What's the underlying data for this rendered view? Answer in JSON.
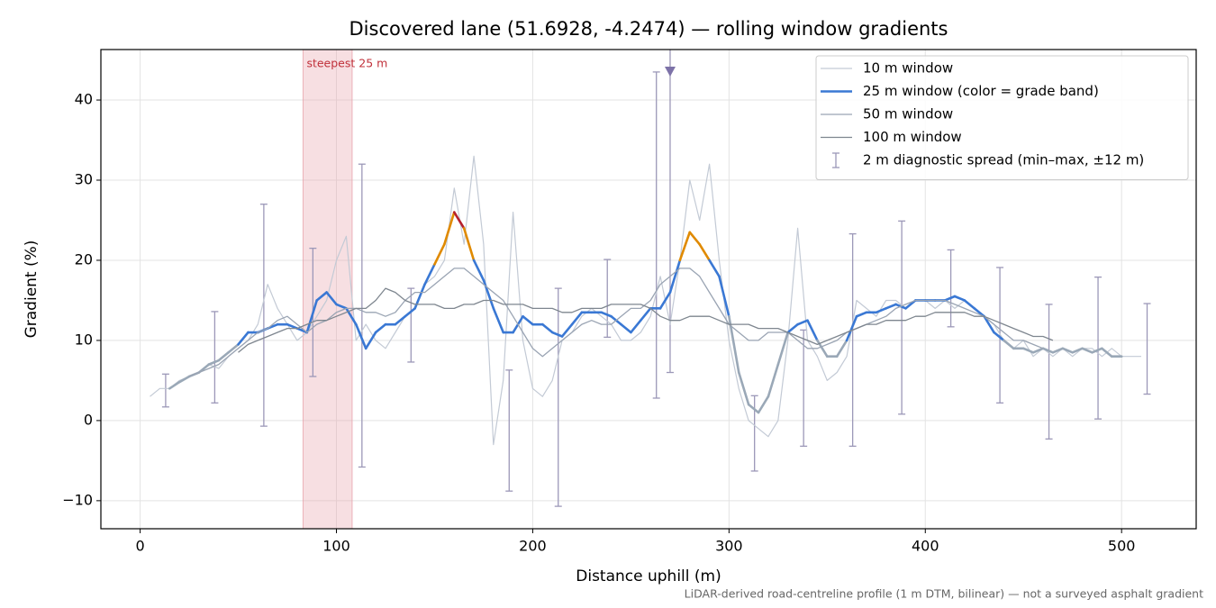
{
  "chart_data": {
    "type": "line",
    "title": "Discovered lane (51.6928, -4.2474) — rolling window gradients",
    "xlabel": "Distance uphill (m)",
    "ylabel": "Gradient (%)",
    "footnote": "LiDAR-derived road-centreline profile (1 m DTM, bilinear) — not a surveyed asphalt gradient",
    "xlim": [
      -20,
      538
    ],
    "ylim": [
      -13.5,
      46.3
    ],
    "xticks": [
      0,
      100,
      200,
      300,
      400,
      500
    ],
    "yticks": [
      {
        "value": -10,
        "label": "−10"
      },
      0,
      10,
      20,
      30,
      40
    ],
    "grid": true,
    "legend": "upper right",
    "highlight": {
      "label": "steepest 25 m",
      "x0": 83,
      "x1": 108,
      "color": "#e7a3ab"
    },
    "x": [
      5,
      10,
      15,
      20,
      25,
      30,
      35,
      40,
      45,
      50,
      55,
      60,
      65,
      70,
      75,
      80,
      85,
      90,
      95,
      100,
      105,
      110,
      115,
      120,
      125,
      130,
      135,
      140,
      145,
      150,
      155,
      160,
      165,
      170,
      175,
      180,
      185,
      190,
      195,
      200,
      205,
      210,
      215,
      220,
      225,
      230,
      235,
      240,
      245,
      250,
      255,
      260,
      265,
      270,
      275,
      280,
      285,
      290,
      295,
      300,
      305,
      310,
      315,
      320,
      325,
      330,
      335,
      340,
      345,
      350,
      355,
      360,
      365,
      370,
      375,
      380,
      385,
      390,
      395,
      400,
      405,
      410,
      415,
      420,
      425,
      430,
      435,
      440,
      445,
      450,
      455,
      460,
      465,
      470,
      475,
      480,
      485,
      490,
      495,
      500,
      505,
      510
    ],
    "series": [
      {
        "name": "10 m window",
        "color": "#c3cad5",
        "width": 1.2,
        "values": [
          3,
          4,
          4,
          5,
          5.5,
          6,
          7,
          6.5,
          8,
          9,
          10,
          12,
          17,
          14,
          12,
          10,
          11,
          13,
          15,
          20,
          23,
          10,
          12,
          10,
          9,
          11,
          13,
          14,
          17,
          18,
          20,
          29,
          22,
          33,
          22,
          -3,
          5,
          26,
          10,
          4,
          3,
          5,
          10,
          11,
          13,
          14,
          13,
          12,
          10,
          10,
          11,
          13,
          18,
          12,
          20,
          30,
          25,
          32,
          20,
          10,
          4,
          0,
          -1,
          -2,
          0,
          10,
          24,
          10,
          8,
          5,
          6,
          8,
          15,
          14,
          13,
          15,
          15,
          14,
          15,
          15,
          14,
          15,
          14,
          15,
          14,
          13,
          12,
          10,
          9,
          10,
          8,
          9,
          8,
          9,
          8,
          9,
          9,
          8,
          9,
          8,
          8,
          8
        ]
      },
      {
        "name": "25 m window (color = grade band)",
        "color": "#3a78d4",
        "width": 2.6,
        "grade_bands": [
          {
            "below": 10,
            "color": "#9aa8b7"
          },
          {
            "below": 20,
            "color": "#3a78d4"
          },
          {
            "below": 25,
            "color": "#e08a00"
          },
          {
            "color": "#b5202e"
          }
        ],
        "values": [
          null,
          null,
          4,
          4.8,
          5.5,
          6,
          7,
          7.5,
          8.5,
          9.5,
          11,
          11,
          11.5,
          12,
          12,
          11.5,
          11,
          15,
          16,
          14.5,
          14,
          12,
          9,
          11,
          12,
          12,
          13,
          14,
          17,
          19.5,
          22,
          26,
          24,
          20,
          17.5,
          14,
          11,
          11,
          13,
          12,
          12,
          11,
          10.5,
          12,
          13.5,
          13.5,
          13.5,
          13,
          12,
          11,
          12.5,
          14,
          14,
          16,
          20,
          23.5,
          22,
          20,
          18,
          13,
          6,
          2,
          1,
          3,
          7,
          11,
          12,
          12.5,
          10,
          8,
          8,
          10,
          13,
          13.5,
          13.5,
          14,
          14.5,
          14,
          15,
          15,
          15,
          15,
          15.5,
          15,
          14,
          13,
          11,
          10,
          9,
          9,
          8.5,
          9,
          8.5,
          9,
          8.5,
          9,
          8.5,
          9,
          8,
          8,
          null,
          null
        ]
      },
      {
        "name": "50 m window",
        "color": "#9aa4b3",
        "width": 1.3,
        "values": [
          null,
          null,
          null,
          null,
          5.5,
          6,
          6.5,
          7,
          8,
          9,
          10,
          11,
          11.5,
          12.5,
          13,
          12,
          11,
          12,
          12.5,
          13.5,
          14,
          14,
          13.5,
          13.5,
          13,
          13.5,
          15,
          16,
          16,
          17,
          18,
          19,
          19,
          18,
          17,
          16,
          15,
          13,
          11,
          9,
          8,
          9,
          10,
          11,
          12,
          12.5,
          12,
          12,
          13,
          14,
          14,
          15,
          17,
          18,
          19,
          19,
          18,
          16,
          14,
          12,
          11,
          10,
          10,
          11,
          11,
          11,
          10,
          9,
          9,
          9.5,
          10,
          11,
          11.5,
          12,
          12.5,
          13,
          14,
          14.5,
          15,
          15,
          15,
          15,
          14.5,
          14,
          13.5,
          13,
          12,
          11,
          10,
          10,
          9.5,
          9,
          null,
          null,
          null,
          null,
          null,
          null,
          null,
          null,
          null,
          null
        ]
      },
      {
        "name": "100 m window",
        "color": "#7e868f",
        "width": 1.3,
        "values": [
          null,
          null,
          null,
          null,
          null,
          null,
          null,
          null,
          null,
          8.5,
          9.5,
          10,
          10.5,
          11,
          11.5,
          11.5,
          12,
          12.5,
          12.5,
          13,
          13.5,
          14,
          14,
          15,
          16.5,
          16,
          15,
          14.5,
          14.5,
          14.5,
          14,
          14,
          14.5,
          14.5,
          15,
          15,
          14.5,
          14.5,
          14.5,
          14,
          14,
          14,
          13.5,
          13.5,
          14,
          14,
          14,
          14.5,
          14.5,
          14.5,
          14.5,
          14,
          13,
          12.5,
          12.5,
          13,
          13,
          13,
          12.5,
          12,
          12,
          12,
          11.5,
          11.5,
          11.5,
          11,
          10.5,
          10,
          9.5,
          10,
          10.5,
          11,
          11.5,
          12,
          12,
          12.5,
          12.5,
          12.5,
          13,
          13,
          13.5,
          13.5,
          13.5,
          13.5,
          13,
          13,
          12.5,
          12,
          11.5,
          11,
          10.5,
          10.5,
          10,
          null,
          null,
          null,
          null,
          null,
          null,
          null,
          null,
          null
        ]
      }
    ],
    "error_bars": {
      "name": "2 m diagnostic spread (min–max, ±12 m)",
      "color": "#9c98b8",
      "marker_color": "#7d72a8",
      "x": [
        13,
        38,
        63,
        88,
        113,
        138,
        188,
        213,
        238,
        263,
        270,
        313,
        338,
        363,
        388,
        413,
        438,
        463,
        488,
        513
      ],
      "low": [
        1.7,
        2.2,
        -0.7,
        5.5,
        -5.8,
        7.3,
        -8.8,
        -10.7,
        10.4,
        2.8,
        6,
        -6.3,
        -3.2,
        -3.2,
        0.8,
        11.7,
        2.2,
        -2.3,
        0.2,
        3.3
      ],
      "high": [
        5.8,
        13.6,
        27,
        21.5,
        32,
        16.5,
        6.3,
        16.5,
        20.1,
        43.5,
        48,
        3.1,
        11.3,
        23.3,
        24.9,
        21.3,
        19.1,
        14.5,
        17.9,
        14.6
      ]
    }
  }
}
